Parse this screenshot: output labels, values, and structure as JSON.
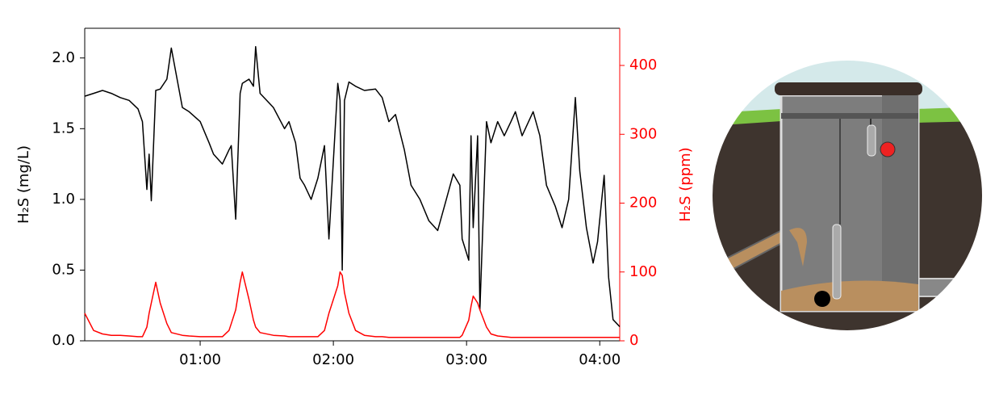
{
  "chart_data": {
    "type": "line",
    "xlim": [
      "00:08",
      "04:09"
    ],
    "xticks": [
      "01:00",
      "02:00",
      "03:00",
      "04:00"
    ],
    "ylabel": "H₂S (mg/L)",
    "y2label": "H₂S (ppm)",
    "ylim": [
      0,
      2.21
    ],
    "yticks": [
      {
        "value": 0,
        "label": "0.0"
      },
      0.5,
      {
        "value": 1,
        "label": "1.0"
      },
      1.5,
      {
        "value": 2,
        "label": "2.0"
      }
    ],
    "y2lim": [
      0,
      454
    ],
    "y2ticks": [
      0,
      100,
      200,
      300,
      400
    ],
    "y2color": "#ff0000",
    "x": [
      "00:08",
      "00:12",
      "00:16",
      "00:20",
      "00:24",
      "00:28",
      "00:32",
      "00:34",
      "00:36",
      "00:37",
      "00:38",
      "00:40",
      "00:42",
      "00:45",
      "00:47",
      "00:52",
      "00:55",
      "01:00",
      "01:04",
      "01:06",
      "01:10",
      "01:13",
      "01:14",
      "01:16",
      "01:18",
      "01:19",
      "01:22",
      "01:24",
      "01:25",
      "01:27",
      "01:33",
      "01:38",
      "01:40",
      "01:43",
      "01:45",
      "01:47",
      "01:50",
      "01:53",
      "01:56",
      "01:58",
      "02:02",
      "02:03",
      "02:04",
      "02:05",
      "02:07",
      "02:10",
      "02:14",
      "02:19",
      "02:22",
      "02:25",
      "02:28",
      "02:32",
      "02:35",
      "02:39",
      "02:43",
      "02:47",
      "02:50",
      "02:54",
      "02:57",
      "02:58",
      "03:01",
      "03:02",
      "03:03",
      "03:05",
      "03:06",
      "03:09",
      "03:11",
      "03:14",
      "03:17",
      "03:20",
      "03:22",
      "03:25",
      "03:30",
      "03:33",
      "03:36",
      "03:40",
      "03:43",
      "03:46",
      "03:49",
      "03:51",
      "03:54",
      "03:57",
      "03:59",
      "04:02",
      "04:04",
      "04:06",
      "04:09"
    ],
    "series": [
      {
        "color": "#000000",
        "values": [
          1.73,
          1.75,
          1.77,
          1.75,
          1.72,
          1.7,
          1.64,
          1.55,
          1.07,
          1.32,
          0.99,
          1.77,
          1.78,
          1.85,
          2.07,
          1.65,
          1.62,
          1.55,
          1.4,
          1.32,
          1.25,
          1.35,
          1.38,
          0.86,
          1.75,
          1.82,
          1.85,
          1.8,
          2.08,
          1.75,
          1.65,
          1.5,
          1.55,
          1.4,
          1.15,
          1.1,
          1.0,
          1.15,
          1.38,
          0.72,
          1.82,
          1.7,
          0.5,
          1.7,
          1.83,
          1.8,
          1.77,
          1.78,
          1.72,
          1.55,
          1.6,
          1.35,
          1.1,
          1.0,
          0.85,
          0.78,
          0.95,
          1.18,
          1.1,
          0.72,
          0.57,
          1.45,
          0.8,
          1.45,
          0.22,
          1.55,
          1.4,
          1.55,
          1.45,
          1.55,
          1.62,
          1.45,
          1.62,
          1.45,
          1.1,
          0.95,
          0.8,
          1.0,
          1.72,
          1.2,
          0.8,
          0.55,
          0.7,
          1.17,
          0.45,
          0.15,
          0.1
        ]
      },
      {
        "color": "#ff0000",
        "axis": "y2",
        "values": [
          40,
          15,
          10,
          8,
          8,
          7,
          6,
          6,
          20,
          40,
          55,
          85,
          55,
          25,
          12,
          8,
          7,
          6,
          6,
          6,
          6,
          15,
          25,
          45,
          85,
          100,
          60,
          30,
          20,
          12,
          8,
          7,
          6,
          6,
          6,
          6,
          6,
          6,
          15,
          40,
          80,
          100,
          95,
          70,
          40,
          15,
          8,
          6,
          6,
          5,
          5,
          5,
          5,
          5,
          5,
          5,
          5,
          5,
          5,
          8,
          30,
          50,
          65,
          55,
          45,
          20,
          10,
          7,
          6,
          5,
          5,
          5,
          5,
          5,
          5,
          5,
          5,
          5,
          5,
          5,
          5,
          5,
          5,
          5,
          5,
          5,
          5
        ]
      }
    ]
  }
}
